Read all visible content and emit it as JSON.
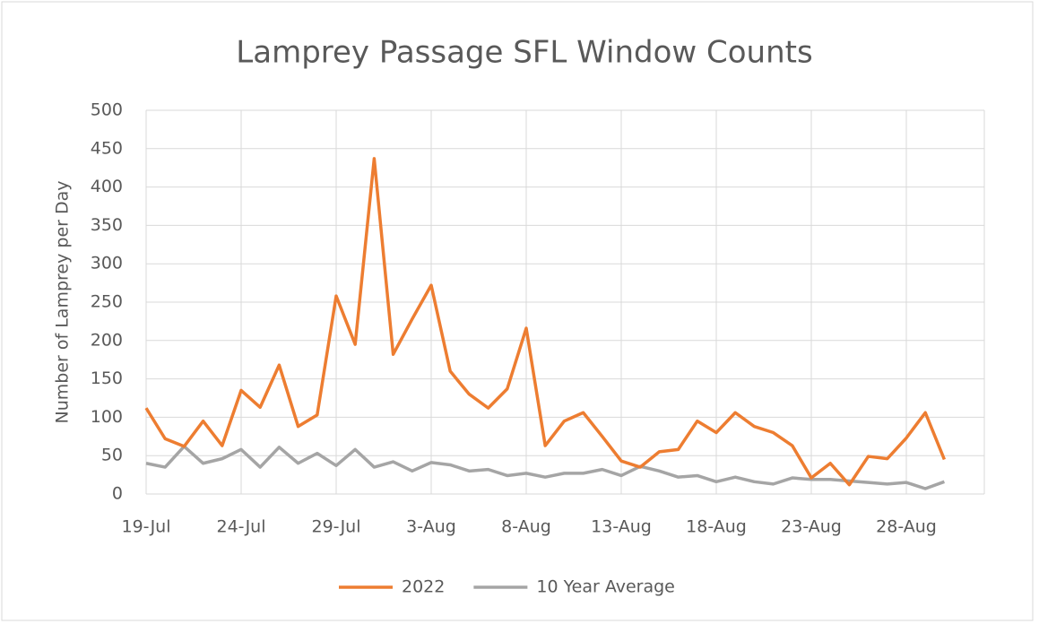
{
  "chart_data": {
    "type": "line",
    "title": "Lamprey Passage SFL Window Counts",
    "y_label": "Number  of Lamprey per Day",
    "categories": [
      "19-Jul",
      null,
      null,
      null,
      null,
      "24-Jul",
      null,
      null,
      null,
      null,
      "29-Jul",
      null,
      null,
      null,
      null,
      "3-Aug",
      null,
      null,
      null,
      null,
      "8-Aug",
      null,
      null,
      null,
      null,
      "13-Aug",
      null,
      null,
      null,
      null,
      "18-Aug",
      null,
      null,
      null,
      null,
      "23-Aug",
      null,
      null,
      null,
      null,
      "28-Aug",
      null,
      null
    ],
    "series": [
      {
        "name": "2022",
        "color": "#ED7D31",
        "values": [
          112,
          72,
          62,
          95,
          63,
          135,
          113,
          168,
          88,
          103,
          258,
          195,
          437,
          182,
          228,
          272,
          160,
          130,
          112,
          137,
          216,
          63,
          95,
          106,
          75,
          43,
          35,
          55,
          58,
          95,
          80,
          106,
          88,
          80,
          63,
          21,
          40,
          12,
          49,
          46,
          73,
          106,
          45
        ]
      },
      {
        "name": "10 Year Average",
        "color": "#A5A5A5",
        "values": [
          40,
          35,
          62,
          40,
          46,
          58,
          35,
          61,
          40,
          53,
          37,
          58,
          35,
          42,
          30,
          41,
          38,
          30,
          32,
          24,
          27,
          22,
          27,
          27,
          32,
          24,
          36,
          30,
          22,
          24,
          16,
          22,
          16,
          13,
          21,
          19,
          19,
          17,
          15,
          13,
          15,
          7,
          16
        ]
      }
    ],
    "ylim": [
      0,
      500
    ],
    "yticks": [
      0,
      50,
      100,
      150,
      200,
      250,
      300,
      350,
      400,
      450,
      500
    ],
    "grid": true,
    "legend": "bottom"
  }
}
